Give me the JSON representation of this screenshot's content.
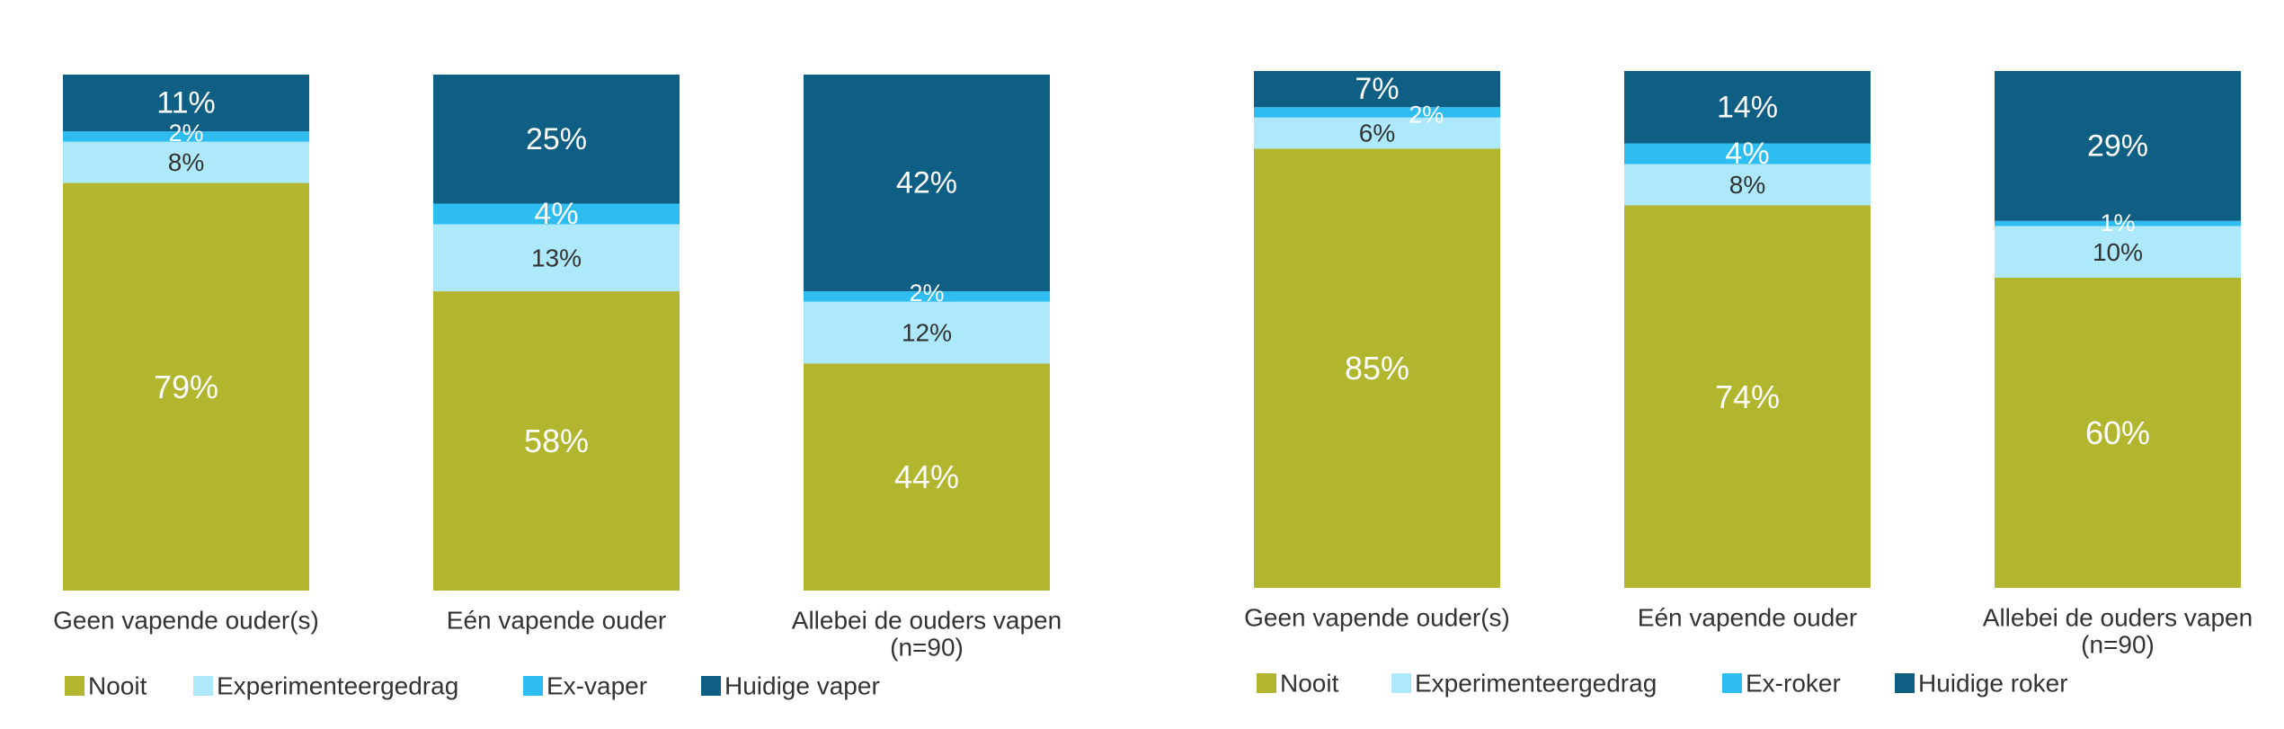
{
  "chart_data": [
    {
      "type": "bar",
      "stacked": true,
      "normalized": true,
      "categories": [
        "Geen vapende ouder(s)",
        "Eén vapende ouder",
        "Allebei de ouders vapen\n(n=90)"
      ],
      "series": [
        {
          "name": "Nooit",
          "values": [
            79,
            58,
            44
          ],
          "labels": [
            "79%",
            "58%",
            "44%"
          ],
          "color": "#b2b52e",
          "label_color": "#ffffff"
        },
        {
          "name": "Experimenteergedrag",
          "values": [
            8,
            13,
            12
          ],
          "labels": [
            "8%",
            "13%",
            "12%"
          ],
          "color": "#aee9fb",
          "label_color": "#333333"
        },
        {
          "name": "Ex-vaper",
          "values": [
            2,
            4,
            2
          ],
          "labels": [
            "2%",
            "4%",
            "2%"
          ],
          "color": "#2dbdf1",
          "label_color": "#ffffff"
        },
        {
          "name": "Huidige vaper",
          "values": [
            11,
            25,
            42
          ],
          "labels": [
            "11%",
            "25%",
            "42%"
          ],
          "color": "#0f5e84",
          "label_color": "#ffffff"
        }
      ],
      "ylim": [
        0,
        100
      ],
      "grid": false,
      "legend_position": "bottom-left"
    },
    {
      "type": "bar",
      "stacked": true,
      "normalized": true,
      "categories": [
        "Geen vapende ouder(s)",
        "Eén vapende ouder",
        "Allebei de ouders vapen\n(n=90)"
      ],
      "series": [
        {
          "name": "Nooit",
          "values": [
            85,
            74,
            60
          ],
          "labels": [
            "85%",
            "74%",
            "60%"
          ],
          "color": "#b2b52e",
          "label_color": "#ffffff"
        },
        {
          "name": "Experimenteergedrag",
          "values": [
            6,
            8,
            10
          ],
          "labels": [
            "6%",
            "8%",
            "10%"
          ],
          "color": "#aee9fb",
          "label_color": "#333333"
        },
        {
          "name": "Ex-roker",
          "values": [
            2,
            4,
            1
          ],
          "labels": [
            "2%",
            "4%",
            "1%"
          ],
          "color": "#2dbdf1",
          "label_color": "#ffffff"
        },
        {
          "name": "Huidige roker",
          "values": [
            7,
            14,
            29
          ],
          "labels": [
            "7%",
            "14%",
            "29%"
          ],
          "color": "#0f5e84",
          "label_color": "#ffffff"
        }
      ],
      "ylim": [
        0,
        100
      ],
      "grid": false,
      "legend_position": "bottom-left"
    }
  ]
}
